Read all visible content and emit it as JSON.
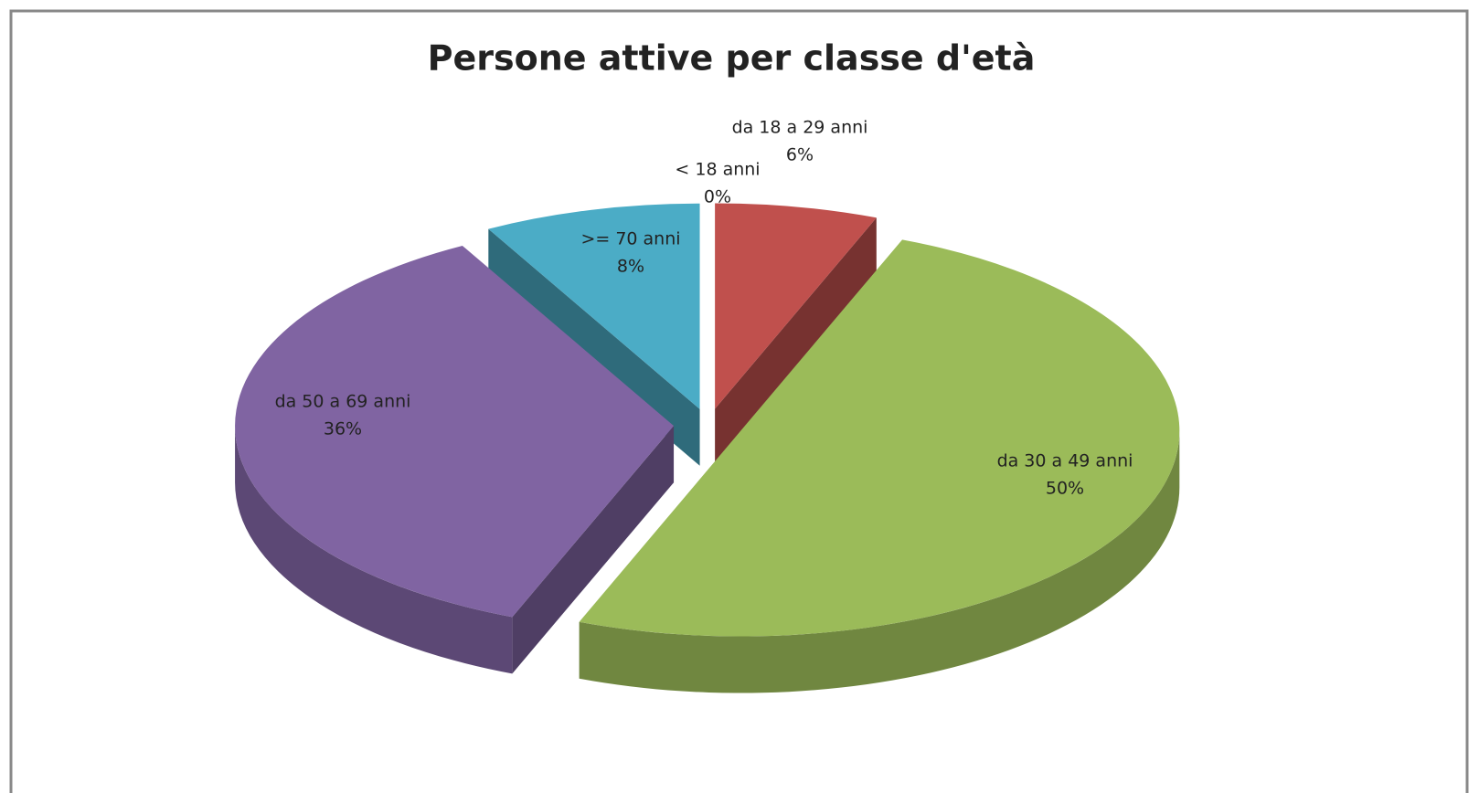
{
  "chart_data": {
    "type": "pie3d",
    "title": "Persone attive per classe d'età",
    "categories": [
      "< 18 anni",
      "da 18 a 29 anni",
      "da 30 a 49 anni",
      "da 50 a 69 anni",
      ">= 70 anni"
    ],
    "values": [
      0,
      6,
      50,
      36,
      8
    ],
    "value_labels": [
      "0%",
      "6%",
      "50%",
      "36%",
      "8%"
    ],
    "colors": [
      "#4f81bd",
      "#c0504d",
      "#9bbb59",
      "#8064a2",
      "#4bacc6"
    ],
    "exploded": true
  }
}
